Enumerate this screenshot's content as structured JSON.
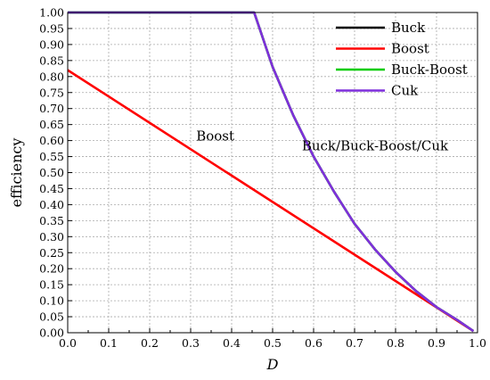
{
  "chart_data": {
    "type": "line",
    "title": "",
    "xlabel": "D",
    "ylabel": "efficiency",
    "xlim": [
      0.0,
      1.0
    ],
    "ylim": [
      0.0,
      1.0
    ],
    "x_ticks": [
      "0.0",
      "0.1",
      "0.2",
      "0.3",
      "0.4",
      "0.5",
      "0.6",
      "0.7",
      "0.8",
      "0.9",
      "1.0"
    ],
    "y_ticks": [
      "0.00",
      "0.05",
      "0.10",
      "0.15",
      "0.20",
      "0.25",
      "0.30",
      "0.35",
      "0.40",
      "0.45",
      "0.50",
      "0.55",
      "0.60",
      "0.65",
      "0.70",
      "0.75",
      "0.80",
      "0.85",
      "0.90",
      "0.95",
      "1.00"
    ],
    "grid": true,
    "legend_position": "top-right",
    "series": [
      {
        "name": "Buck",
        "color": "#000000",
        "x": [
          0.0,
          0.455,
          0.5,
          0.55,
          0.6,
          0.65,
          0.7,
          0.75,
          0.8,
          0.85,
          0.9,
          0.95,
          0.99
        ],
        "y": [
          1.0,
          1.0,
          0.83,
          0.68,
          0.55,
          0.44,
          0.34,
          0.26,
          0.19,
          0.13,
          0.08,
          0.04,
          0.005
        ]
      },
      {
        "name": "Boost",
        "color": "#ff0000",
        "x": [
          0.0,
          0.99
        ],
        "y": [
          0.82,
          0.005
        ]
      },
      {
        "name": "Buck-Boost",
        "color": "#00cc00",
        "x": [
          0.0,
          0.455,
          0.5,
          0.55,
          0.6,
          0.65,
          0.7,
          0.75,
          0.8,
          0.85,
          0.9,
          0.95,
          0.99
        ],
        "y": [
          1.0,
          1.0,
          0.83,
          0.68,
          0.55,
          0.44,
          0.34,
          0.26,
          0.19,
          0.13,
          0.08,
          0.04,
          0.005
        ]
      },
      {
        "name": "Cuk",
        "color": "#7f2fdc",
        "x": [
          0.0,
          0.455,
          0.5,
          0.55,
          0.6,
          0.65,
          0.7,
          0.75,
          0.8,
          0.85,
          0.9,
          0.95,
          0.99
        ],
        "y": [
          1.0,
          1.0,
          0.83,
          0.68,
          0.55,
          0.44,
          0.34,
          0.26,
          0.19,
          0.13,
          0.08,
          0.04,
          0.005
        ]
      }
    ],
    "annotations": [
      {
        "text": "Boost",
        "x": 0.36,
        "y": 0.6
      },
      {
        "text": "Buck/Buck-Boost/Cuk",
        "x": 0.75,
        "y": 0.57
      }
    ]
  }
}
